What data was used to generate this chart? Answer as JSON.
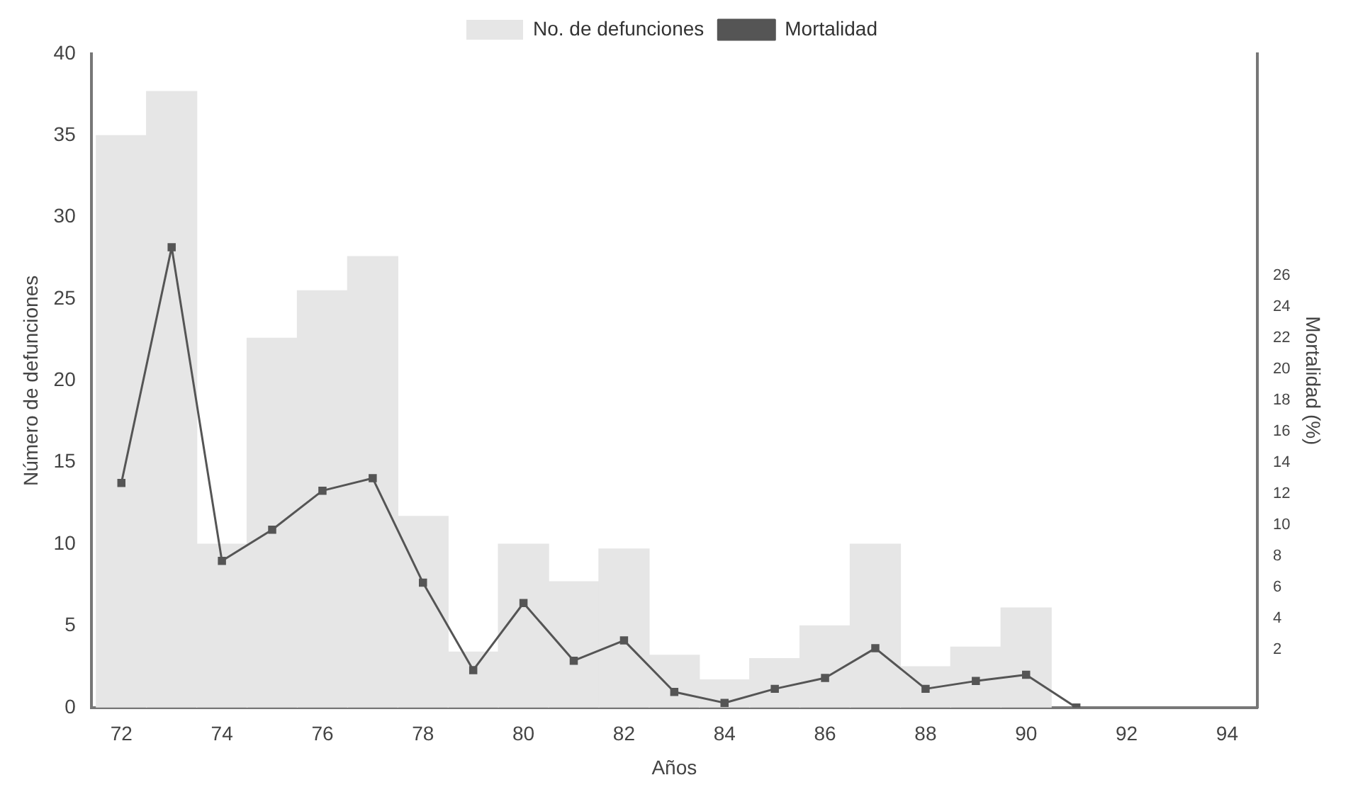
{
  "chart_data": {
    "type": "bar",
    "xlabel": "Años",
    "ylabel": "Número de defunciones",
    "y2label": "Mortalidad (%)",
    "x": [
      72,
      73,
      74,
      75,
      76,
      77,
      78,
      79,
      80,
      81,
      82,
      83,
      84,
      85,
      86,
      87,
      88,
      89,
      90
    ],
    "series": [
      {
        "name": "No. de defunciones",
        "color": "#e6e6e6",
        "values": [
          35,
          37.7,
          10,
          22.6,
          25.5,
          27.6,
          11.7,
          3.4,
          10,
          7.7,
          9.7,
          3.2,
          1.7,
          3,
          5,
          10,
          2.5,
          3.7,
          6.1
        ]
      },
      {
        "name": "Mortalidad",
        "type": "line",
        "axis": "y2",
        "color": "#555555",
        "x": [
          72,
          73,
          74,
          75,
          76,
          77,
          78,
          79,
          80,
          81,
          82,
          83,
          84,
          85,
          86,
          87,
          88,
          89,
          90,
          91
        ],
        "values": [
          12.7,
          27.8,
          7.7,
          9.7,
          12.2,
          13,
          6.3,
          0.7,
          5,
          1.3,
          2.6,
          -0.7,
          -1.4,
          -0.5,
          0.2,
          2.1,
          -0.5,
          0,
          0.4,
          -1.7
        ]
      }
    ],
    "xlim": [
      71.4,
      94.6
    ],
    "xticks": [
      72,
      74,
      76,
      78,
      80,
      82,
      84,
      86,
      88,
      90,
      92,
      94
    ],
    "ylim": [
      0,
      40
    ],
    "yticks": [
      0,
      5,
      10,
      15,
      20,
      25,
      30,
      35,
      40
    ],
    "y2lim": [
      -1.7,
      40.2
    ],
    "y2ticks": [
      2,
      4,
      6,
      8,
      10,
      12,
      14,
      16,
      18,
      20,
      22,
      24,
      26
    ],
    "grid": false,
    "legend": "top",
    "marker": "square",
    "line_style": "solid"
  }
}
